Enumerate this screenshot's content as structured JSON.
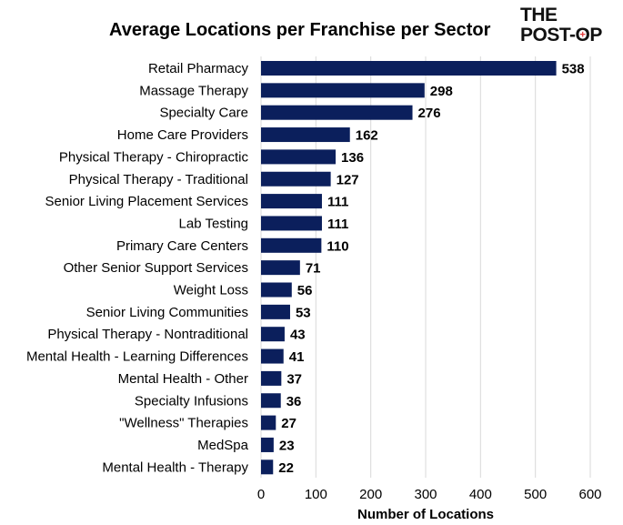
{
  "logo": {
    "line1": "THE",
    "line2_a": "POST-",
    "line2_o": "O",
    "line2_b": "P",
    "mark": "+"
  },
  "chart_data": {
    "type": "bar",
    "orientation": "horizontal",
    "title": "Average Locations per Franchise per Sector",
    "xlabel": "Number of Locations",
    "ylabel": "",
    "xlim": [
      0,
      600
    ],
    "xticks": [
      0,
      100,
      200,
      300,
      400,
      500,
      600
    ],
    "grid": true,
    "bar_color": "#0b1f5c",
    "categories": [
      "Retail Pharmacy",
      "Massage Therapy",
      "Specialty Care",
      "Home Care Providers",
      "Physical Therapy - Chiropractic",
      "Physical Therapy - Traditional",
      "Senior Living Placement Services",
      "Lab Testing",
      "Primary Care Centers",
      "Other Senior Support Services",
      "Weight Loss",
      "Senior Living Communities",
      "Physical Therapy - Nontraditional",
      "Mental Health - Learning Differences",
      "Mental Health - Other",
      "Specialty Infusions",
      "\"Wellness\" Therapies",
      "MedSpa",
      "Mental Health - Therapy"
    ],
    "values": [
      538,
      298,
      276,
      162,
      136,
      127,
      111,
      111,
      110,
      71,
      56,
      53,
      43,
      41,
      37,
      36,
      27,
      23,
      22
    ]
  }
}
